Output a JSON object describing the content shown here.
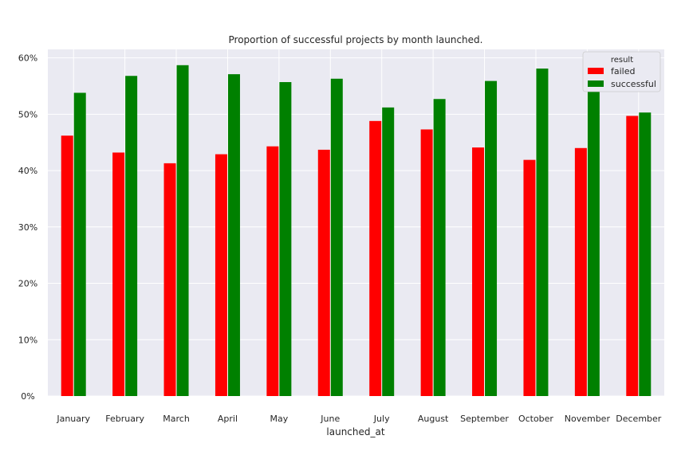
{
  "chart_data": {
    "type": "bar",
    "title": "Proportion of successful projects by month launched.",
    "xlabel": "launched_at",
    "ylabel": "",
    "categories": [
      "January",
      "February",
      "March",
      "April",
      "May",
      "June",
      "July",
      "August",
      "September",
      "October",
      "November",
      "December"
    ],
    "series": [
      {
        "name": "failed",
        "color": "#ff0000",
        "values": [
          46.2,
          43.2,
          41.3,
          42.9,
          44.3,
          43.7,
          48.8,
          47.3,
          44.1,
          41.9,
          44.0,
          49.7
        ]
      },
      {
        "name": "successful",
        "color": "#008000",
        "values": [
          53.8,
          56.8,
          58.7,
          57.1,
          55.7,
          56.3,
          51.2,
          52.7,
          55.9,
          58.1,
          56.0,
          50.3
        ]
      }
    ],
    "ylim": [
      0,
      61.5
    ],
    "yticks": [
      0,
      10,
      20,
      30,
      40,
      50,
      60
    ],
    "ytick_labels": [
      "0%",
      "10%",
      "20%",
      "30%",
      "40%",
      "50%",
      "60%"
    ],
    "grid": true,
    "legend": {
      "title": "result",
      "placement": "top-right"
    }
  }
}
